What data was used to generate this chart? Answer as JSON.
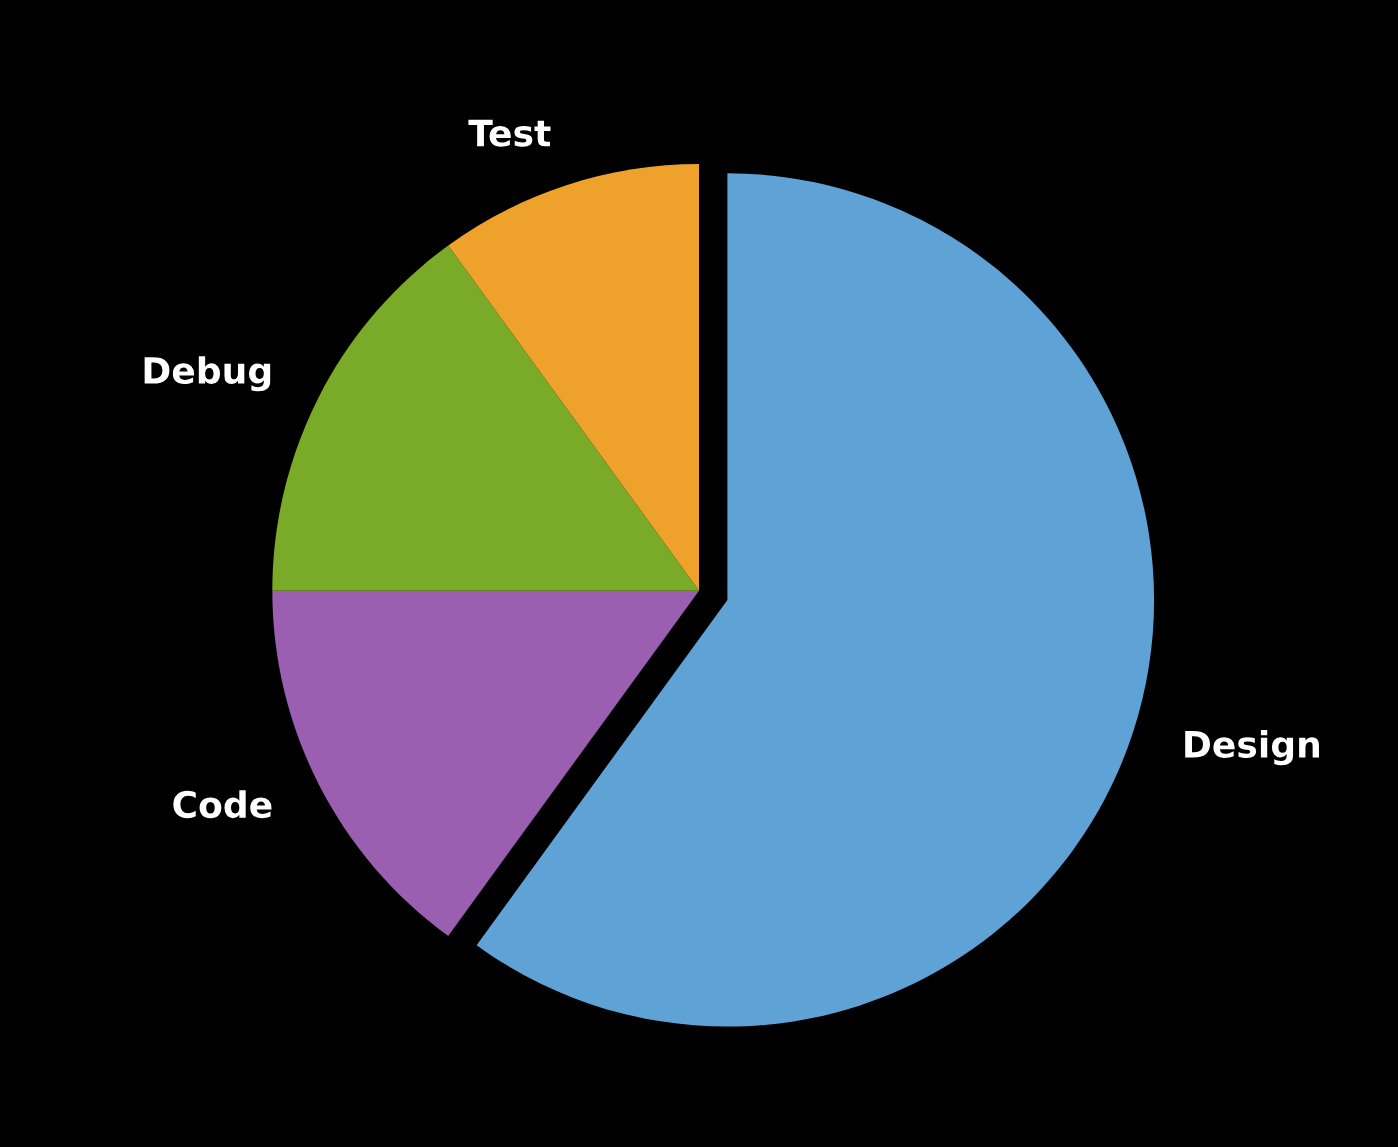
{
  "chart_data": {
    "type": "pie",
    "categories": [
      "Design",
      "Code",
      "Debug",
      "Test"
    ],
    "values": [
      60,
      15,
      15,
      10
    ],
    "colors": [
      "#5fa3d6",
      "#9a5fb0",
      "#7aab28",
      "#eea22c"
    ],
    "legend": false
  }
}
